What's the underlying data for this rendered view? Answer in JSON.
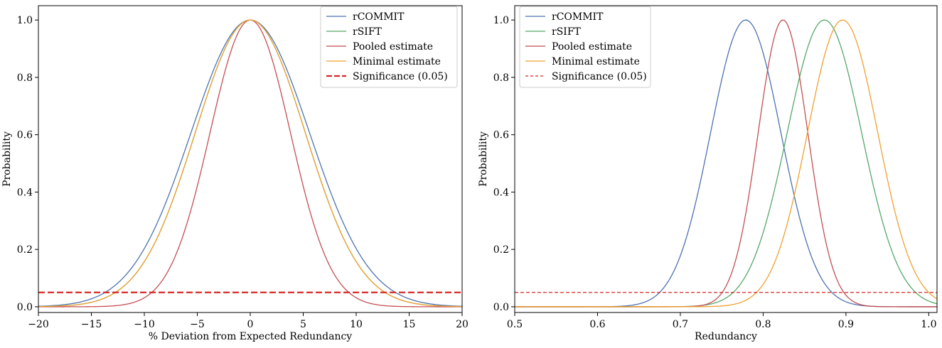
{
  "chart_data": [
    {
      "type": "line",
      "xlabel": "% Deviation from Expected Redundancy",
      "ylabel": "Probability",
      "xlim": [
        -20,
        20
      ],
      "ylim": [
        -0.02,
        1.05
      ],
      "xticks": [
        -20,
        -15,
        -10,
        -5,
        0,
        5,
        10,
        15,
        20
      ],
      "xtick_labels": [
        "−20",
        "−15",
        "−10",
        "−5",
        "0",
        "5",
        "10",
        "15",
        "20"
      ],
      "yticks": [
        0.0,
        0.2,
        0.4,
        0.6,
        0.8,
        1.0
      ],
      "ytick_labels": [
        "0.0",
        "0.2",
        "0.4",
        "0.6",
        "0.8",
        "1.0"
      ],
      "legend_position": "top-right",
      "series": [
        {
          "name": "rCOMMIT",
          "color": "#4c72b0",
          "kind": "gaussian",
          "mean": 0,
          "sd": 5.6
        },
        {
          "name": "rSIFT",
          "color": "#55a868",
          "kind": "gaussian",
          "mean": 0,
          "sd": 5.2
        },
        {
          "name": "Pooled estimate",
          "color": "#c44e52",
          "kind": "gaussian",
          "mean": 0,
          "sd": 3.8
        },
        {
          "name": "Minimal estimate",
          "color": "#f0a030",
          "kind": "gaussian",
          "mean": 0,
          "sd": 5.2
        },
        {
          "name": "Significance (0.05)",
          "color": "#d62728",
          "kind": "hline",
          "y": 0.05,
          "dashed": true,
          "thick": true
        }
      ]
    },
    {
      "type": "line",
      "xlabel": "Redundancy",
      "ylabel": "Probability",
      "xlim": [
        0.5,
        1.01
      ],
      "ylim": [
        -0.02,
        1.05
      ],
      "xticks": [
        0.5,
        0.6,
        0.7,
        0.8,
        0.9,
        1.0
      ],
      "xtick_labels": [
        "0.5",
        "0.6",
        "0.7",
        "0.8",
        "0.9",
        "1.0"
      ],
      "yticks": [
        0.0,
        0.2,
        0.4,
        0.6,
        0.8,
        1.0
      ],
      "ytick_labels": [
        "0.0",
        "0.2",
        "0.4",
        "0.6",
        "0.8",
        "1.0"
      ],
      "legend_position": "top-left",
      "series": [
        {
          "name": "rCOMMIT",
          "color": "#4c72b0",
          "kind": "gaussian",
          "mean": 0.779,
          "sd": 0.0425
        },
        {
          "name": "rSIFT",
          "color": "#55a868",
          "kind": "gaussian",
          "mean": 0.874,
          "sd": 0.045
        },
        {
          "name": "Pooled estimate",
          "color": "#c44e52",
          "kind": "gaussian",
          "mean": 0.824,
          "sd": 0.03
        },
        {
          "name": "Minimal estimate",
          "color": "#f0a030",
          "kind": "gaussian",
          "mean": 0.896,
          "sd": 0.0425
        },
        {
          "name": "Significance (0.05)",
          "color": "#d62728",
          "kind": "hline",
          "y": 0.05,
          "dashed": true,
          "thick": false
        }
      ]
    }
  ]
}
